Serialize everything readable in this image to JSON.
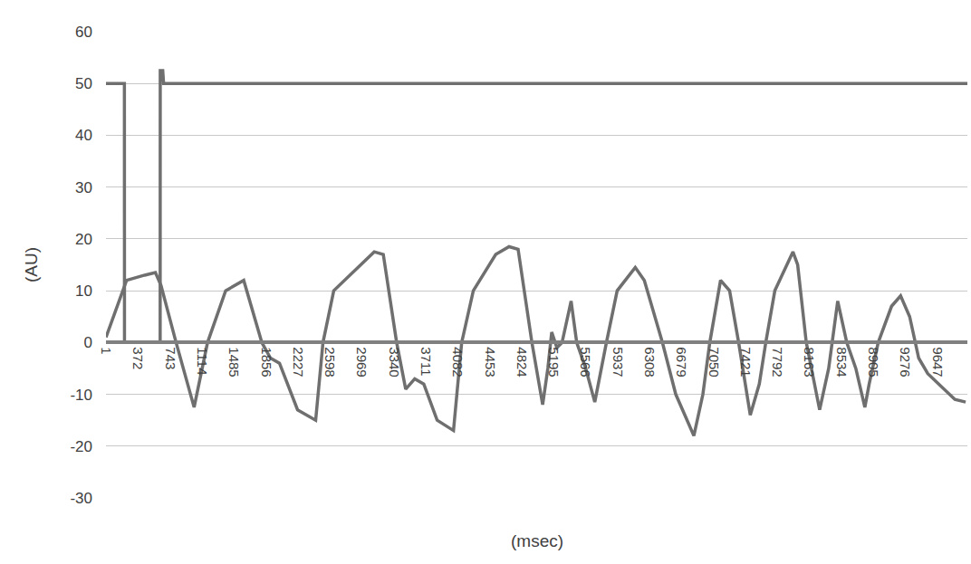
{
  "chart_data": {
    "type": "line",
    "x_label": "(msec)",
    "y_label": "(AU)",
    "xlim": [
      1,
      10000
    ],
    "xticks": [
      1,
      372,
      743,
      1114,
      1485,
      1856,
      2227,
      2598,
      2969,
      3340,
      3711,
      4082,
      4453,
      4824,
      5195,
      5566,
      5937,
      6308,
      6679,
      7050,
      7421,
      7792,
      8163,
      8534,
      8905,
      9276,
      9647
    ],
    "ylim": [
      -30,
      60
    ],
    "yticks": [
      -30,
      -20,
      -10,
      0,
      10,
      20,
      30,
      40,
      50,
      60
    ],
    "grid": "y",
    "series": [
      {
        "color": "#6f6f6f",
        "line_style": "solid",
        "x": [
          1,
          215,
          216,
          630,
          631,
          660,
          670,
          10000
        ],
        "values": [
          50,
          50,
          0,
          0,
          52.5,
          52.5,
          50,
          50
        ]
      },
      {
        "color": "#6f6f6f",
        "line_style": "solid",
        "x": [
          1,
          240,
          450,
          575,
          640,
          815,
          1024,
          1180,
          1390,
          1600,
          1810,
          1910,
          2015,
          2225,
          2435,
          2520,
          2645,
          2960,
          3115,
          3220,
          3375,
          3480,
          3585,
          3690,
          3845,
          4035,
          4130,
          4265,
          4525,
          4680,
          4785,
          4945,
          5070,
          5130,
          5175,
          5235,
          5295,
          5400,
          5465,
          5570,
          5675,
          5810,
          5935,
          6145,
          6250,
          6460,
          6615,
          6825,
          6930,
          7010,
          7135,
          7240,
          7345,
          7480,
          7585,
          7660,
          7765,
          7975,
          8030,
          8130,
          8285,
          8390,
          8495,
          8600,
          8705,
          8810,
          8860,
          8965,
          9120,
          9225,
          9330,
          9435,
          9540,
          9855,
          9980
        ],
        "values": [
          1,
          12,
          13,
          13.5,
          11,
          0,
          -12.5,
          0,
          10,
          12,
          0,
          -3,
          -4,
          -13,
          -15,
          0,
          10,
          15,
          17.5,
          17,
          0,
          -9,
          -7,
          -8,
          -15,
          -17,
          0,
          10,
          17,
          18.5,
          18,
          0,
          -12,
          -5,
          2,
          -1,
          0,
          8,
          0,
          -5,
          -11.5,
          0,
          10,
          14.5,
          12,
          0,
          -10,
          -18,
          -10,
          0,
          12,
          10,
          0,
          -14,
          -8,
          0,
          10,
          17.5,
          15,
          0,
          -13,
          -5,
          8,
          0,
          -5,
          -12.5,
          -8,
          0,
          7,
          9,
          5,
          -3,
          -6,
          -11,
          -11.5
        ]
      }
    ]
  }
}
